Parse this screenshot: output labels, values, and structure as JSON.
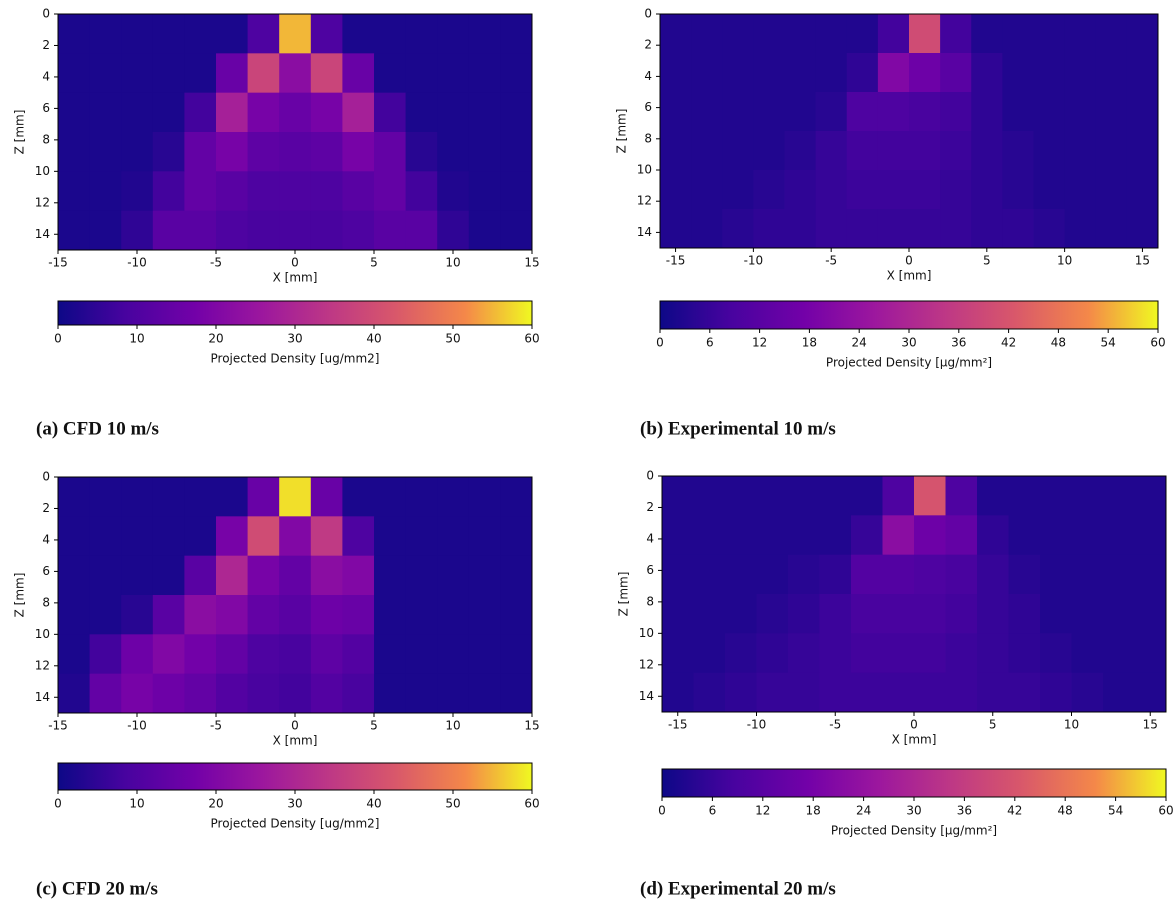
{
  "chart_data": [
    {
      "type": "heatmap",
      "caption": "(a)  CFD 10 m/s",
      "xlabel": "X [mm]",
      "ylabel": "Z [mm]",
      "colorbar_label": "Projected Density [ug/mm2]",
      "colormap": "plasma",
      "xlim": [
        -15,
        15
      ],
      "ylim": [
        0,
        15
      ],
      "y_inverted": true,
      "clim": [
        0,
        60
      ],
      "xticks": [
        -15,
        -10,
        -5,
        0,
        5,
        10,
        15
      ],
      "yticks": [
        0,
        2,
        4,
        6,
        8,
        10,
        12,
        14
      ],
      "cticks": [
        0,
        10,
        20,
        30,
        40,
        50,
        60
      ],
      "x": [
        -14,
        -12,
        -10,
        -8,
        -6,
        -4,
        -2,
        0,
        2,
        4,
        6,
        8,
        10,
        12,
        14
      ],
      "y": [
        1.25,
        3.75,
        6.25,
        8.75,
        11.25,
        13.75
      ],
      "values": [
        [
          2,
          2,
          2,
          2,
          2,
          2,
          10,
          55,
          10,
          2,
          2,
          2,
          2,
          2,
          2
        ],
        [
          2,
          2,
          2,
          2,
          2,
          15,
          38,
          22,
          38,
          15,
          2,
          2,
          2,
          2,
          2
        ],
        [
          2,
          2,
          2,
          2,
          8,
          28,
          18,
          15,
          18,
          28,
          8,
          2,
          2,
          2,
          2
        ],
        [
          2,
          2,
          2,
          4,
          14,
          18,
          13,
          12,
          13,
          18,
          14,
          4,
          2,
          2,
          2
        ],
        [
          2,
          2,
          3,
          8,
          14,
          12,
          10,
          10,
          10,
          12,
          14,
          8,
          3,
          2,
          2
        ],
        [
          2,
          2,
          5,
          12,
          12,
          10,
          9,
          9,
          9,
          10,
          12,
          12,
          5,
          2,
          2
        ]
      ]
    },
    {
      "type": "heatmap",
      "caption": "(b)  Experimental 10 m/s",
      "xlabel": "X [mm]",
      "ylabel": "Z [mm]",
      "colorbar_label": "Projected Density [μg/mm²]",
      "colormap": "plasma",
      "xlim": [
        -16,
        16
      ],
      "ylim": [
        0,
        15
      ],
      "y_inverted": true,
      "clim": [
        0,
        60
      ],
      "xticks": [
        -15,
        -10,
        -5,
        0,
        5,
        10,
        15
      ],
      "yticks": [
        0,
        2,
        4,
        6,
        8,
        10,
        12,
        14
      ],
      "cticks": [
        0,
        6,
        12,
        18,
        24,
        30,
        36,
        42,
        48,
        54,
        60
      ],
      "x": [
        -15,
        -13,
        -11,
        -9,
        -7,
        -5,
        -3,
        -1,
        1,
        3,
        5,
        7,
        9,
        11,
        13,
        15
      ],
      "y": [
        1.25,
        3.75,
        6.25,
        8.75,
        11.25,
        13.75
      ],
      "values": [
        [
          3,
          3,
          3,
          3,
          3,
          3,
          3,
          8,
          40,
          8,
          3,
          3,
          3,
          3,
          3,
          3
        ],
        [
          3,
          3,
          3,
          3,
          3,
          3,
          5,
          20,
          16,
          12,
          5,
          3,
          3,
          3,
          3,
          3
        ],
        [
          3,
          3,
          3,
          3,
          3,
          4,
          10,
          10,
          9,
          8,
          5,
          3,
          3,
          3,
          3,
          3
        ],
        [
          3,
          3,
          3,
          3,
          4,
          6,
          8,
          8,
          8,
          7,
          5,
          4,
          3,
          3,
          3,
          3
        ],
        [
          3,
          3,
          3,
          4,
          5,
          6,
          7,
          7,
          7,
          6,
          5,
          4,
          3,
          3,
          3,
          3
        ],
        [
          3,
          3,
          4,
          5,
          5,
          6,
          6,
          6,
          6,
          6,
          5,
          5,
          4,
          3,
          3,
          3
        ]
      ]
    },
    {
      "type": "heatmap",
      "caption": "(c)  CFD 20 m/s",
      "xlabel": "X [mm]",
      "ylabel": "Z [mm]",
      "colorbar_label": "Projected Density [ug/mm2]",
      "colormap": "plasma",
      "xlim": [
        -15,
        15
      ],
      "ylim": [
        0,
        15
      ],
      "y_inverted": true,
      "clim": [
        0,
        60
      ],
      "xticks": [
        -15,
        -10,
        -5,
        0,
        5,
        10,
        15
      ],
      "yticks": [
        0,
        2,
        4,
        6,
        8,
        10,
        12,
        14
      ],
      "cticks": [
        0,
        10,
        20,
        30,
        40,
        50,
        60
      ],
      "x": [
        -14,
        -12,
        -10,
        -8,
        -6,
        -4,
        -2,
        0,
        2,
        4,
        6,
        8,
        10,
        12,
        14
      ],
      "y": [
        1.25,
        3.75,
        6.25,
        8.75,
        11.25,
        13.75
      ],
      "values": [
        [
          2,
          2,
          2,
          2,
          2,
          2,
          15,
          58,
          15,
          2,
          2,
          2,
          2,
          2,
          2
        ],
        [
          2,
          2,
          2,
          2,
          2,
          18,
          40,
          20,
          35,
          10,
          2,
          2,
          2,
          2,
          2
        ],
        [
          2,
          2,
          2,
          2,
          12,
          30,
          18,
          14,
          22,
          20,
          2,
          2,
          2,
          2,
          2
        ],
        [
          2,
          2,
          4,
          12,
          22,
          20,
          14,
          12,
          16,
          15,
          2,
          2,
          2,
          2,
          2
        ],
        [
          2,
          8,
          16,
          20,
          17,
          14,
          10,
          9,
          13,
          11,
          2,
          2,
          2,
          2,
          2
        ],
        [
          3,
          14,
          18,
          16,
          14,
          11,
          9,
          8,
          11,
          9,
          2,
          2,
          2,
          2,
          2
        ]
      ]
    },
    {
      "type": "heatmap",
      "caption": "(d)  Experimental 20 m/s",
      "xlabel": "X [mm]",
      "ylabel": "Z [mm]",
      "colorbar_label": "Projected Density [μg/mm²]",
      "colormap": "plasma",
      "xlim": [
        -16,
        16
      ],
      "ylim": [
        0,
        15
      ],
      "y_inverted": true,
      "clim": [
        0,
        60
      ],
      "xticks": [
        -15,
        -10,
        -5,
        0,
        5,
        10,
        15
      ],
      "yticks": [
        0,
        2,
        4,
        6,
        8,
        10,
        12,
        14
      ],
      "cticks": [
        0,
        6,
        12,
        18,
        24,
        30,
        36,
        42,
        48,
        54,
        60
      ],
      "x": [
        -15,
        -13,
        -11,
        -9,
        -7,
        -5,
        -3,
        -1,
        1,
        3,
        5,
        7,
        9,
        11,
        13,
        15
      ],
      "y": [
        1.25,
        3.75,
        6.25,
        8.75,
        11.25,
        13.75
      ],
      "values": [
        [
          3,
          3,
          3,
          3,
          3,
          3,
          3,
          10,
          42,
          10,
          3,
          3,
          3,
          3,
          3,
          3
        ],
        [
          3,
          3,
          3,
          3,
          3,
          3,
          6,
          22,
          16,
          14,
          5,
          3,
          3,
          3,
          3,
          3
        ],
        [
          3,
          3,
          3,
          3,
          4,
          5,
          11,
          11,
          10,
          9,
          6,
          4,
          3,
          3,
          3,
          3
        ],
        [
          3,
          3,
          3,
          4,
          5,
          7,
          9,
          9,
          9,
          8,
          6,
          5,
          3,
          3,
          3,
          3
        ],
        [
          3,
          3,
          4,
          5,
          6,
          7,
          8,
          8,
          8,
          7,
          6,
          5,
          4,
          3,
          3,
          3
        ],
        [
          3,
          4,
          5,
          6,
          6,
          7,
          7,
          7,
          7,
          7,
          6,
          6,
          5,
          4,
          3,
          3
        ]
      ]
    }
  ]
}
